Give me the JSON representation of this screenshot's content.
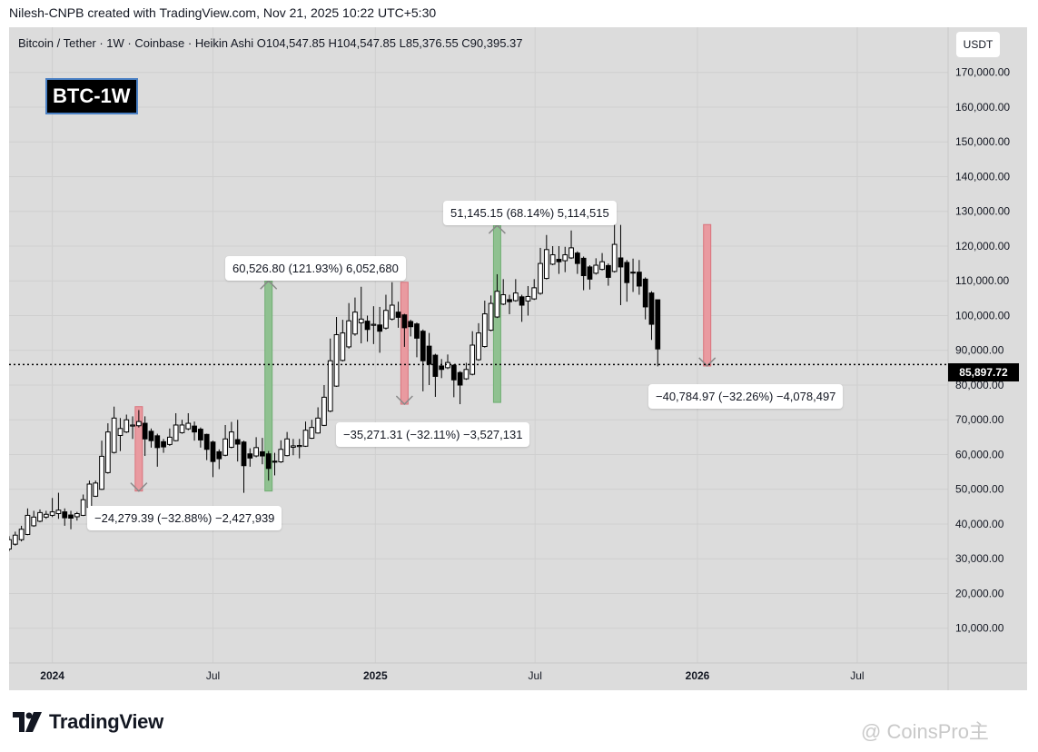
{
  "header": {
    "credit": "Nilesh-CNPB created with TradingView.com, Nov 21, 2025 10:22 UTC+5:30"
  },
  "legend": {
    "text": "Bitcoin / Tether · 1W · Coinbase · Heikin Ashi  O104,547.85  H104,547.85  L85,376.55  C90,395.37"
  },
  "currency_button": "USDT",
  "badge": "BTC-1W",
  "price_label": "85,897.72",
  "footer": {
    "logo_text": "TradingView",
    "watermark": "@ CoinsPro主"
  },
  "colors": {
    "up": "#ffffff",
    "down": "#000000",
    "green_measure": "#8fc190",
    "red_measure": "#e99aa0",
    "background": "#dcdcdc"
  },
  "chart_data": {
    "type": "candlestick",
    "style": "Heikin Ashi",
    "symbol": "Bitcoin / Tether",
    "interval": "1W",
    "exchange": "Coinbase",
    "ylim": [
      0,
      183000
    ],
    "y_ticks": [
      10000,
      20000,
      30000,
      40000,
      50000,
      60000,
      70000,
      80000,
      90000,
      100000,
      110000,
      120000,
      130000,
      140000,
      150000,
      160000,
      170000
    ],
    "y_tick_labels": [
      "10,000.00",
      "20,000.00",
      "30,000.00",
      "40,000.00",
      "50,000.00",
      "60,000.00",
      "70,000.00",
      "80,000.00",
      "90,000.00",
      "100,000.00",
      "110,000.00",
      "120,000.00",
      "130,000.00",
      "140,000.00",
      "150,000.00",
      "160,000.00",
      "170,000.00"
    ],
    "x_ticks": [
      {
        "date": "2024-01-01",
        "label": "2024"
      },
      {
        "date": "2024-07-01",
        "label": "Jul"
      },
      {
        "date": "2025-01-01",
        "label": "2025"
      },
      {
        "date": "2025-07-01",
        "label": "Jul"
      },
      {
        "date": "2026-01-01",
        "label": "2026"
      },
      {
        "date": "2026-07-01",
        "label": "Jul"
      }
    ],
    "x_range": [
      "2023-11-13",
      "2026-10-12"
    ],
    "current_price": 85897.72,
    "grid": true,
    "candles": [
      {
        "date": "2023-11-13",
        "open": 32800,
        "high": 36500,
        "low": 32200,
        "close": 35500
      },
      {
        "date": "2023-11-20",
        "open": 34200,
        "high": 37800,
        "low": 33800,
        "close": 36800
      },
      {
        "date": "2023-11-27",
        "open": 35500,
        "high": 39500,
        "low": 35000,
        "close": 38500
      },
      {
        "date": "2023-12-04",
        "open": 37000,
        "high": 44500,
        "low": 36800,
        "close": 42500
      },
      {
        "date": "2023-12-11",
        "open": 39500,
        "high": 43800,
        "low": 39200,
        "close": 42000
      },
      {
        "date": "2023-12-18",
        "open": 40800,
        "high": 44200,
        "low": 40500,
        "close": 43300
      },
      {
        "date": "2023-12-25",
        "open": 42000,
        "high": 43800,
        "low": 41500,
        "close": 42800
      },
      {
        "date": "2024-01-01",
        "open": 42500,
        "high": 47500,
        "low": 42000,
        "close": 43500
      },
      {
        "date": "2024-01-08",
        "open": 43000,
        "high": 49000,
        "low": 41500,
        "close": 44000
      },
      {
        "date": "2024-01-15",
        "open": 43500,
        "high": 44500,
        "low": 39500,
        "close": 41800
      },
      {
        "date": "2024-01-22",
        "open": 42600,
        "high": 43800,
        "low": 38500,
        "close": 41700
      },
      {
        "date": "2024-01-29",
        "open": 42100,
        "high": 43500,
        "low": 41000,
        "close": 43000
      },
      {
        "date": "2024-02-05",
        "open": 42500,
        "high": 48500,
        "low": 42300,
        "close": 47000
      },
      {
        "date": "2024-02-12",
        "open": 44800,
        "high": 52500,
        "low": 44500,
        "close": 51500
      },
      {
        "date": "2024-02-19",
        "open": 48000,
        "high": 52500,
        "low": 47800,
        "close": 51800
      },
      {
        "date": "2024-02-26",
        "open": 50000,
        "high": 64000,
        "low": 49800,
        "close": 59500
      },
      {
        "date": "2024-03-04",
        "open": 54800,
        "high": 69000,
        "low": 54500,
        "close": 66500
      },
      {
        "date": "2024-03-11",
        "open": 60600,
        "high": 73800,
        "low": 60300,
        "close": 70500
      },
      {
        "date": "2024-03-18",
        "open": 65500,
        "high": 70500,
        "low": 61000,
        "close": 67500
      },
      {
        "date": "2024-03-25",
        "open": 66500,
        "high": 71500,
        "low": 66200,
        "close": 70000
      },
      {
        "date": "2024-04-01",
        "open": 68200,
        "high": 71000,
        "low": 64500,
        "close": 68500
      },
      {
        "date": "2024-04-08",
        "open": 68300,
        "high": 72800,
        "low": 67800,
        "close": 69500
      },
      {
        "date": "2024-04-15",
        "open": 69000,
        "high": 71000,
        "low": 59600,
        "close": 64500
      },
      {
        "date": "2024-04-22",
        "open": 66700,
        "high": 67500,
        "low": 62000,
        "close": 64000
      },
      {
        "date": "2024-04-29",
        "open": 65400,
        "high": 66000,
        "low": 56500,
        "close": 62000
      },
      {
        "date": "2024-05-06",
        "open": 63700,
        "high": 64500,
        "low": 60500,
        "close": 62200
      },
      {
        "date": "2024-05-13",
        "open": 62900,
        "high": 67500,
        "low": 62500,
        "close": 65000
      },
      {
        "date": "2024-05-20",
        "open": 64000,
        "high": 71900,
        "low": 63800,
        "close": 68500
      },
      {
        "date": "2024-05-27",
        "open": 66300,
        "high": 70000,
        "low": 66000,
        "close": 68500
      },
      {
        "date": "2024-06-03",
        "open": 67400,
        "high": 71900,
        "low": 67000,
        "close": 69000
      },
      {
        "date": "2024-06-10",
        "open": 68200,
        "high": 69500,
        "low": 64000,
        "close": 66500
      },
      {
        "date": "2024-06-17",
        "open": 67300,
        "high": 67800,
        "low": 62000,
        "close": 64200
      },
      {
        "date": "2024-06-24",
        "open": 65800,
        "high": 66000,
        "low": 58400,
        "close": 61500
      },
      {
        "date": "2024-07-01",
        "open": 63600,
        "high": 64000,
        "low": 53500,
        "close": 58000
      },
      {
        "date": "2024-07-08",
        "open": 60800,
        "high": 61500,
        "low": 55800,
        "close": 58800
      },
      {
        "date": "2024-07-15",
        "open": 59800,
        "high": 68500,
        "low": 59500,
        "close": 64500
      },
      {
        "date": "2024-07-22",
        "open": 62100,
        "high": 69400,
        "low": 61800,
        "close": 66500
      },
      {
        "date": "2024-07-29",
        "open": 64300,
        "high": 70000,
        "low": 58000,
        "close": 63000
      },
      {
        "date": "2024-08-05",
        "open": 63600,
        "high": 64000,
        "low": 49000,
        "close": 56800
      },
      {
        "date": "2024-08-12",
        "open": 60200,
        "high": 61800,
        "low": 56500,
        "close": 59000
      },
      {
        "date": "2024-08-19",
        "open": 59600,
        "high": 65000,
        "low": 59200,
        "close": 62000
      },
      {
        "date": "2024-08-26",
        "open": 60800,
        "high": 64800,
        "low": 57200,
        "close": 59600
      },
      {
        "date": "2024-09-02",
        "open": 60200,
        "high": 61000,
        "low": 52500,
        "close": 56000
      },
      {
        "date": "2024-09-09",
        "open": 58100,
        "high": 60500,
        "low": 54000,
        "close": 57800
      },
      {
        "date": "2024-09-16",
        "open": 57900,
        "high": 64100,
        "low": 57600,
        "close": 61500
      },
      {
        "date": "2024-09-23",
        "open": 59700,
        "high": 66500,
        "low": 59500,
        "close": 64500
      },
      {
        "date": "2024-09-30",
        "open": 62100,
        "high": 64500,
        "low": 59800,
        "close": 62500
      },
      {
        "date": "2024-10-07",
        "open": 62300,
        "high": 64500,
        "low": 58900,
        "close": 62600
      },
      {
        "date": "2024-10-14",
        "open": 62400,
        "high": 69500,
        "low": 62200,
        "close": 67000
      },
      {
        "date": "2024-10-21",
        "open": 64700,
        "high": 70000,
        "low": 64500,
        "close": 67800
      },
      {
        "date": "2024-10-28",
        "open": 66200,
        "high": 73600,
        "low": 66000,
        "close": 70500
      },
      {
        "date": "2024-11-04",
        "open": 68400,
        "high": 80000,
        "low": 68200,
        "close": 76500
      },
      {
        "date": "2024-11-11",
        "open": 72500,
        "high": 93400,
        "low": 72200,
        "close": 87000
      },
      {
        "date": "2024-11-18",
        "open": 79700,
        "high": 99600,
        "low": 79500,
        "close": 94500
      },
      {
        "date": "2024-11-25",
        "open": 87100,
        "high": 98800,
        "low": 86800,
        "close": 95000
      },
      {
        "date": "2024-12-02",
        "open": 91000,
        "high": 103600,
        "low": 90500,
        "close": 98500
      },
      {
        "date": "2024-12-09",
        "open": 94700,
        "high": 105200,
        "low": 94200,
        "close": 101000
      },
      {
        "date": "2024-12-16",
        "open": 97900,
        "high": 108300,
        "low": 92000,
        "close": 99000
      },
      {
        "date": "2024-12-23",
        "open": 98400,
        "high": 100000,
        "low": 92500,
        "close": 96000
      },
      {
        "date": "2024-12-30",
        "open": 97200,
        "high": 102700,
        "low": 91800,
        "close": 97500
      },
      {
        "date": "2025-01-06",
        "open": 97300,
        "high": 102500,
        "low": 89300,
        "close": 95500
      },
      {
        "date": "2025-01-13",
        "open": 96400,
        "high": 106000,
        "low": 96000,
        "close": 101500
      },
      {
        "date": "2025-01-20",
        "open": 99000,
        "high": 109600,
        "low": 98600,
        "close": 103000
      },
      {
        "date": "2025-01-27",
        "open": 101000,
        "high": 104000,
        "low": 96500,
        "close": 99500
      },
      {
        "date": "2025-02-03",
        "open": 100200,
        "high": 100500,
        "low": 91000,
        "close": 96500
      },
      {
        "date": "2025-02-10",
        "open": 98300,
        "high": 98800,
        "low": 94000,
        "close": 96800
      },
      {
        "date": "2025-02-17",
        "open": 97600,
        "high": 98000,
        "low": 88000,
        "close": 93500
      },
      {
        "date": "2025-02-24",
        "open": 95500,
        "high": 96000,
        "low": 78200,
        "close": 87000
      },
      {
        "date": "2025-03-03",
        "open": 91200,
        "high": 95000,
        "low": 80000,
        "close": 86000
      },
      {
        "date": "2025-03-10",
        "open": 88600,
        "high": 89000,
        "low": 76600,
        "close": 82500
      },
      {
        "date": "2025-03-17",
        "open": 85500,
        "high": 87500,
        "low": 82000,
        "close": 84500
      },
      {
        "date": "2025-03-24",
        "open": 85000,
        "high": 88800,
        "low": 84600,
        "close": 86500
      },
      {
        "date": "2025-03-31",
        "open": 85700,
        "high": 86000,
        "low": 76500,
        "close": 81500
      },
      {
        "date": "2025-04-07",
        "open": 83600,
        "high": 84000,
        "low": 74500,
        "close": 80000
      },
      {
        "date": "2025-04-14",
        "open": 81800,
        "high": 86400,
        "low": 81500,
        "close": 84500
      },
      {
        "date": "2025-04-21",
        "open": 83100,
        "high": 95500,
        "low": 82800,
        "close": 91500
      },
      {
        "date": "2025-04-28",
        "open": 87300,
        "high": 97800,
        "low": 87000,
        "close": 95000
      },
      {
        "date": "2025-05-05",
        "open": 91100,
        "high": 104300,
        "low": 90800,
        "close": 100500
      },
      {
        "date": "2025-05-12",
        "open": 95800,
        "high": 105800,
        "low": 95500,
        "close": 103500
      },
      {
        "date": "2025-05-19",
        "open": 99600,
        "high": 111900,
        "low": 99300,
        "close": 107000
      },
      {
        "date": "2025-05-26",
        "open": 103300,
        "high": 110500,
        "low": 103000,
        "close": 106000
      },
      {
        "date": "2025-06-02",
        "open": 104600,
        "high": 106000,
        "low": 100400,
        "close": 104000
      },
      {
        "date": "2025-06-09",
        "open": 104300,
        "high": 110500,
        "low": 104000,
        "close": 106500
      },
      {
        "date": "2025-06-16",
        "open": 105400,
        "high": 106000,
        "low": 98200,
        "close": 103000
      },
      {
        "date": "2025-06-23",
        "open": 104200,
        "high": 108500,
        "low": 100000,
        "close": 105500
      },
      {
        "date": "2025-06-30",
        "open": 104800,
        "high": 110500,
        "low": 104500,
        "close": 108000
      },
      {
        "date": "2025-07-07",
        "open": 106400,
        "high": 119500,
        "low": 106000,
        "close": 115000
      },
      {
        "date": "2025-07-14",
        "open": 110700,
        "high": 123200,
        "low": 110400,
        "close": 119000
      },
      {
        "date": "2025-07-21",
        "open": 114800,
        "high": 120000,
        "low": 114500,
        "close": 117500
      },
      {
        "date": "2025-07-28",
        "open": 116200,
        "high": 120000,
        "low": 112000,
        "close": 115500
      },
      {
        "date": "2025-08-04",
        "open": 115800,
        "high": 119800,
        "low": 112500,
        "close": 117500
      },
      {
        "date": "2025-08-11",
        "open": 116600,
        "high": 124500,
        "low": 116300,
        "close": 119500
      },
      {
        "date": "2025-08-18",
        "open": 118000,
        "high": 118500,
        "low": 112000,
        "close": 115000
      },
      {
        "date": "2025-08-25",
        "open": 116500,
        "high": 117000,
        "low": 107300,
        "close": 111500
      },
      {
        "date": "2025-09-01",
        "open": 114000,
        "high": 114500,
        "low": 107500,
        "close": 110500
      },
      {
        "date": "2025-09-08",
        "open": 112200,
        "high": 116500,
        "low": 111800,
        "close": 114500
      },
      {
        "date": "2025-09-15",
        "open": 113300,
        "high": 118000,
        "low": 113000,
        "close": 115500
      },
      {
        "date": "2025-09-22",
        "open": 114400,
        "high": 115000,
        "low": 108600,
        "close": 111000
      },
      {
        "date": "2025-09-29",
        "open": 112700,
        "high": 126200,
        "low": 112400,
        "close": 120500
      },
      {
        "date": "2025-10-06",
        "open": 116600,
        "high": 126100,
        "low": 103000,
        "close": 114000
      },
      {
        "date": "2025-10-13",
        "open": 115300,
        "high": 116000,
        "low": 104000,
        "close": 109500
      },
      {
        "date": "2025-10-20",
        "open": 112400,
        "high": 116400,
        "low": 106800,
        "close": 112500
      },
      {
        "date": "2025-10-27",
        "open": 112500,
        "high": 116000,
        "low": 106000,
        "close": 108500
      },
      {
        "date": "2025-11-03",
        "open": 110500,
        "high": 111000,
        "low": 98900,
        "close": 102500
      },
      {
        "date": "2025-11-10",
        "open": 106500,
        "high": 107000,
        "low": 93000,
        "close": 97500
      },
      {
        "date": "2025-11-17",
        "open": 104547.85,
        "high": 104547.85,
        "low": 85376.55,
        "close": 90395.37
      }
    ],
    "measures": [
      {
        "type": "down",
        "date": "2024-04-08",
        "from": 73800,
        "to": 49500,
        "label": "−24,279.39 (−32.88%) −2,427,939"
      },
      {
        "type": "up",
        "date": "2024-09-02",
        "from": 49500,
        "to": 110000,
        "label": "60,526.80 (121.93%) 6,052,680"
      },
      {
        "type": "down",
        "date": "2025-02-03",
        "from": 109600,
        "to": 74500,
        "label": "−35,271.31 (−32.11%) −3,527,131"
      },
      {
        "type": "up",
        "date": "2025-05-19",
        "from": 75000,
        "to": 126000,
        "label": "51,145.15 (68.14%) 5,114,515"
      },
      {
        "type": "down",
        "date": "2026-01-12",
        "from": 126200,
        "to": 85500,
        "label": "−40,784.97 (−32.26%) −4,078,497"
      }
    ]
  }
}
